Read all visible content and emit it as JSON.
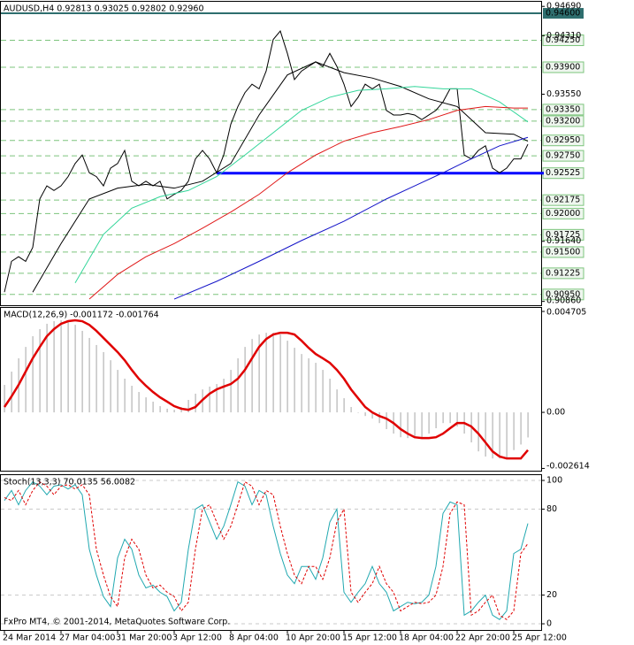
{
  "chart_data": [
    {
      "type": "line",
      "title": "AUDUSD,H4  0.92813 0.93025 0.92802 0.92960",
      "categories": [
        "24 Mar 2014",
        null,
        null,
        null,
        null,
        null,
        null,
        null,
        "27 Mar 04:00",
        null,
        null,
        null,
        null,
        null,
        null,
        null,
        "31 Mar 20:00",
        null,
        null,
        null,
        null,
        null,
        null,
        null,
        "3 Apr 12:00",
        null,
        null,
        null,
        null,
        null,
        null,
        null,
        "8 Apr 04:00",
        null,
        null,
        null,
        null,
        null,
        null,
        null,
        "10 Apr 20:00",
        null,
        null,
        null,
        null,
        null,
        null,
        null,
        "15 Apr 12:00",
        null,
        null,
        null,
        null,
        null,
        null,
        null,
        "18 Apr 04:00",
        null,
        null,
        null,
        null,
        null,
        null,
        null,
        "22 Apr 20:00",
        null,
        null,
        null,
        null,
        null,
        null,
        null,
        "25 Apr 12:00",
        null,
        null
      ],
      "series": [
        {
          "color": "#000000",
          "values": [
            0.9098,
            0.9138,
            0.9144,
            0.9138,
            0.9156,
            0.9219,
            0.9236,
            0.923,
            0.9236,
            0.9248,
            0.9265,
            0.9276,
            0.9253,
            0.9248,
            0.9236,
            0.9259,
            0.9265,
            0.9282,
            0.9242,
            0.9236,
            0.9242,
            0.9236,
            0.9242,
            0.9219,
            0.9225,
            0.923,
            0.9242,
            0.9271,
            0.9282,
            0.9271,
            0.9253,
            0.9276,
            0.9316,
            0.9339,
            0.9357,
            0.9368,
            0.9362,
            0.9385,
            0.9426,
            0.9437,
            0.9408,
            0.9374,
            0.9385,
            0.9391,
            0.9397,
            0.9391,
            0.9408,
            0.9391,
            0.9368,
            0.9339,
            0.9351,
            0.9368,
            0.9362,
            0.9368,
            0.9334,
            0.9328,
            0.9328,
            0.933,
            0.9328,
            0.9322,
            0.9328,
            0.9334,
            0.9345,
            0.9362,
            0.9362,
            0.9276,
            0.9271,
            0.9282,
            0.9288,
            0.9259,
            0.9253,
            0.9259,
            0.9271,
            0.9271,
            0.929
          ]
        },
        {
          "color": "#000000",
          "x": [
            4,
            8,
            12,
            16,
            20,
            24,
            28,
            32,
            36,
            40,
            44,
            48,
            52,
            56,
            60,
            64,
            68,
            72,
            74
          ],
          "values": [
            0.9098,
            0.9161,
            0.9219,
            0.9233,
            0.9238,
            0.9233,
            0.9242,
            0.9265,
            0.9328,
            0.938,
            0.9397,
            0.9383,
            0.9376,
            0.9365,
            0.9349,
            0.9339,
            0.9305,
            0.9303,
            0.9294
          ]
        },
        {
          "color": "#33d69a",
          "x": [
            10,
            14,
            18,
            22,
            26,
            30,
            34,
            38,
            42,
            46,
            50,
            54,
            58,
            62,
            66,
            70,
            74
          ],
          "values": [
            0.911,
            0.9173,
            0.9207,
            0.9222,
            0.923,
            0.9248,
            0.9276,
            0.9305,
            0.9334,
            0.9351,
            0.936,
            0.9362,
            0.9365,
            0.9362,
            0.9362,
            0.9345,
            0.9319
          ]
        },
        {
          "color": "#e01818",
          "x": [
            12,
            16,
            20,
            24,
            28,
            32,
            36,
            40,
            44,
            48,
            52,
            56,
            60,
            64,
            68,
            72,
            74
          ],
          "values": [
            0.9089,
            0.9121,
            0.9144,
            0.9161,
            0.9181,
            0.9202,
            0.9225,
            0.9253,
            0.9276,
            0.9294,
            0.9305,
            0.9313,
            0.9322,
            0.9334,
            0.9339,
            0.9337,
            0.9337
          ]
        },
        {
          "color": "#1414c8",
          "x": [
            24,
            30,
            36,
            42,
            48,
            54,
            58,
            62,
            66,
            70,
            74
          ],
          "values": [
            0.9089,
            0.9112,
            0.9138,
            0.9165,
            0.919,
            0.9219,
            0.9236,
            0.9253,
            0.9271,
            0.9288,
            0.9299
          ]
        }
      ],
      "ylim": [
        0.9081,
        0.9475
      ],
      "yticks": [
        {
          "value": 0.9469,
          "label": "0.94690"
        },
        {
          "value": 0.9431,
          "label": "0.94310"
        },
        {
          "value": 0.9355,
          "label": "0.93550"
        },
        {
          "value": 0.9164,
          "label": "0.91640"
        },
        {
          "value": 0.9086,
          "label": "0.90860"
        }
      ],
      "level_color": "#7cc47c",
      "levels": [
        {
          "value": 0.9425,
          "label": "0.94250"
        },
        {
          "value": 0.939,
          "label": "0.93900"
        },
        {
          "value": 0.9335,
          "label": "0.93350"
        },
        {
          "value": 0.932,
          "label": "0.93200"
        },
        {
          "value": 0.9295,
          "label": "0.92950"
        },
        {
          "value": 0.9275,
          "label": "0.92750"
        },
        {
          "value": 0.92525,
          "label": "0.92525"
        },
        {
          "value": 0.92175,
          "label": "0.92175"
        },
        {
          "value": 0.92,
          "label": "0.92000"
        },
        {
          "value": 0.91725,
          "label": "0.91725"
        },
        {
          "value": 0.915,
          "label": "0.91500"
        },
        {
          "value": 0.91225,
          "label": "0.91225"
        },
        {
          "value": 0.9095,
          "label": "0.90950"
        }
      ],
      "resistance": {
        "value": 0.946,
        "label": "0.94600",
        "color": "#2e6e6e"
      },
      "support": {
        "value": 0.92525,
        "color": "#0000ff"
      }
    },
    {
      "type": "combo",
      "title": "MACD(12,26,9) -0.001172 -0.001764",
      "series": [
        {
          "type": "bar",
          "color": "#b4b4b4",
          "values": [
            0.00128,
            0.0019,
            0.00252,
            0.00305,
            0.00355,
            0.00388,
            0.00413,
            0.00425,
            0.00429,
            0.00425,
            0.00408,
            0.0038,
            0.00347,
            0.00314,
            0.00281,
            0.00243,
            0.00198,
            0.00157,
            0.00124,
            0.00095,
            0.0007,
            0.0005,
            0.00029,
            0.00017,
            0.00012,
            0.00025,
            0.00058,
            0.00087,
            0.00107,
            0.0012,
            0.00132,
            0.00157,
            0.00198,
            0.00252,
            0.00305,
            0.00342,
            0.00363,
            0.00371,
            0.00371,
            0.00363,
            0.00334,
            0.00301,
            0.00272,
            0.00252,
            0.00231,
            0.00198,
            0.00157,
            0.00107,
            0.00066,
            0.00025,
            0,
            -0.00017,
            -0.00029,
            -0.0005,
            -0.00078,
            -0.00099,
            -0.00116,
            -0.0012,
            -0.0012,
            -0.00116,
            -0.00099,
            -0.00074,
            -0.0005,
            -0.0005,
            -0.00066,
            -0.00099,
            -0.0014,
            -0.00182,
            -0.00206,
            -0.00215,
            -0.00215,
            -0.00215,
            -0.00176,
            -0.0015,
            -0.00117
          ]
        },
        {
          "type": "line",
          "color": "#e00000",
          "values": [
            0.00025,
            0.00074,
            0.00128,
            0.0019,
            0.00252,
            0.00305,
            0.00355,
            0.00388,
            0.00413,
            0.00425,
            0.00429,
            0.00425,
            0.00408,
            0.0038,
            0.00347,
            0.00314,
            0.00281,
            0.00243,
            0.00198,
            0.00157,
            0.00124,
            0.00095,
            0.0007,
            0.0005,
            0.00029,
            0.00017,
            0.00012,
            0.00025,
            0.00058,
            0.00087,
            0.00107,
            0.0012,
            0.00132,
            0.00157,
            0.00198,
            0.00252,
            0.00305,
            0.00342,
            0.00363,
            0.00371,
            0.00371,
            0.00363,
            0.00334,
            0.00301,
            0.00272,
            0.00252,
            0.00231,
            0.00198,
            0.00157,
            0.00107,
            0.00066,
            0.00025,
            0,
            -0.00017,
            -0.00029,
            -0.0005,
            -0.00078,
            -0.00099,
            -0.00116,
            -0.0012,
            -0.0012,
            -0.00116,
            -0.00099,
            -0.00074,
            -0.0005,
            -0.0005,
            -0.00066,
            -0.00099,
            -0.0014,
            -0.00182,
            -0.00206,
            -0.00215,
            -0.00215,
            -0.00215,
            -0.00176
          ]
        }
      ],
      "ylim": [
        -0.00272,
        0.00487
      ],
      "yticks": [
        0.004705,
        {
          "value": 0,
          "label": "0.00"
        },
        -0.002614
      ]
    },
    {
      "type": "line",
      "title": "Stoch(13,3,3) 70.0135 56.0082",
      "annotation": "FxPro MT4, © 2001-2014, MetaQuotes Software Corp.",
      "series": [
        {
          "color": "#20a8b0",
          "values": [
            86,
            93,
            83,
            93,
            99,
            96,
            90,
            96,
            97,
            94,
            97,
            90,
            52,
            34,
            19,
            12,
            46,
            59,
            52,
            34,
            25,
            27,
            22,
            19,
            9,
            15,
            52,
            80,
            83,
            71,
            59,
            68,
            83,
            99,
            96,
            83,
            93,
            90,
            68,
            49,
            34,
            28,
            40,
            40,
            31,
            46,
            71,
            80,
            22,
            15,
            22,
            28,
            40,
            28,
            22,
            9,
            12,
            15,
            14,
            15,
            20,
            40,
            77,
            85,
            83,
            6,
            9,
            15,
            20,
            6,
            3,
            9,
            49,
            52,
            70
          ]
        },
        {
          "color": "#e00000",
          "dashed": true,
          "values": [
            88,
            86,
            93,
            83,
            93,
            99,
            96,
            90,
            96,
            97,
            94,
            97,
            90,
            52,
            34,
            19,
            12,
            46,
            59,
            52,
            34,
            25,
            27,
            22,
            19,
            9,
            15,
            52,
            80,
            83,
            71,
            59,
            68,
            83,
            99,
            96,
            83,
            93,
            90,
            68,
            49,
            34,
            28,
            40,
            40,
            31,
            46,
            71,
            80,
            22,
            15,
            22,
            28,
            40,
            28,
            22,
            9,
            12,
            15,
            14,
            15,
            20,
            40,
            77,
            85,
            83,
            6,
            9,
            15,
            20,
            6,
            3,
            9,
            49,
            56
          ]
        }
      ],
      "ylim": [
        -4.3,
        103.7
      ],
      "yticks": [
        100,
        80,
        20,
        0
      ],
      "grid": true
    }
  ]
}
